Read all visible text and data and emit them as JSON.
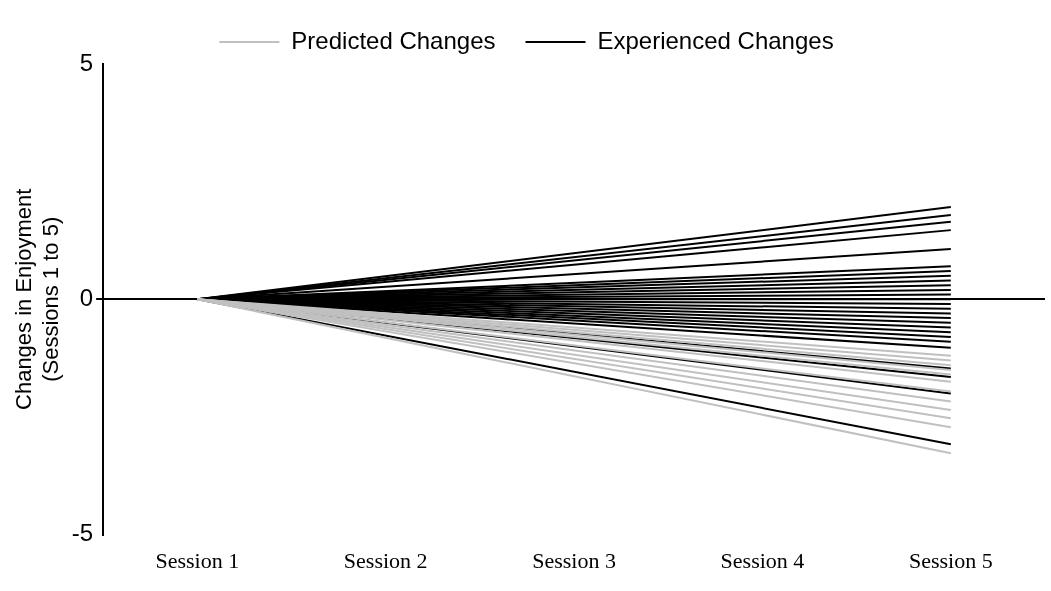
{
  "chart_data": {
    "type": "line",
    "ylabel": "Changes in Enjoyment\n(Sessions 1 to 5)",
    "categories": [
      "Session 1",
      "Session 2",
      "Session 3",
      "Session 4",
      "Session 5"
    ],
    "ylim": [
      -5,
      5
    ],
    "yticks": [
      -5,
      0,
      5
    ],
    "legend": "top",
    "grid": false,
    "marker": "none",
    "line_style": "solid",
    "series": [
      {
        "name": "Predicted Changes",
        "color": "#c0c0c0",
        "values": [
          0,
          null,
          null,
          null,
          -3.27
        ]
      },
      {
        "color": "#c0c0c0",
        "values": [
          0,
          null,
          null,
          null,
          -2.72
        ]
      },
      {
        "color": "#c0c0c0",
        "values": [
          0,
          null,
          null,
          null,
          -2.53
        ]
      },
      {
        "color": "#c0c0c0",
        "values": [
          0,
          null,
          null,
          null,
          -2.35
        ]
      },
      {
        "color": "#c0c0c0",
        "values": [
          0,
          null,
          null,
          null,
          -2.17
        ]
      },
      {
        "color": "#c0c0c0",
        "values": [
          0,
          null,
          null,
          null,
          -1.96
        ]
      },
      {
        "color": "#c0c0c0",
        "values": [
          0,
          null,
          null,
          null,
          -1.75
        ]
      },
      {
        "color": "#c0c0c0",
        "values": [
          0,
          null,
          null,
          null,
          -1.6
        ]
      },
      {
        "color": "#c0c0c0",
        "values": [
          0,
          null,
          null,
          null,
          -1.5
        ]
      },
      {
        "color": "#c0c0c0",
        "values": [
          0,
          null,
          null,
          null,
          -1.4
        ]
      },
      {
        "color": "#c0c0c0",
        "values": [
          0,
          null,
          null,
          null,
          -1.3
        ]
      },
      {
        "color": "#c0c0c0",
        "values": [
          0,
          null,
          null,
          null,
          -1.2
        ]
      },
      {
        "name": "Experienced Changes",
        "color": "#000000",
        "values": [
          0,
          null,
          null,
          null,
          1.96
        ]
      },
      {
        "color": "#000000",
        "values": [
          0,
          null,
          null,
          null,
          1.79
        ]
      },
      {
        "color": "#000000",
        "values": [
          0,
          null,
          null,
          null,
          1.65
        ]
      },
      {
        "color": "#000000",
        "values": [
          0,
          null,
          null,
          null,
          1.47
        ]
      },
      {
        "color": "#000000",
        "values": [
          0,
          null,
          null,
          null,
          1.07
        ]
      },
      {
        "color": "#000000",
        "values": [
          0,
          null,
          null,
          null,
          0.7
        ]
      },
      {
        "color": "#000000",
        "values": [
          0,
          null,
          null,
          null,
          0.6
        ]
      },
      {
        "color": "#000000",
        "values": [
          0,
          null,
          null,
          null,
          0.5
        ]
      },
      {
        "color": "#000000",
        "values": [
          0,
          null,
          null,
          null,
          0.4
        ]
      },
      {
        "color": "#000000",
        "values": [
          0,
          null,
          null,
          null,
          0.3
        ]
      },
      {
        "color": "#000000",
        "values": [
          0,
          null,
          null,
          null,
          0.2
        ]
      },
      {
        "color": "#000000",
        "values": [
          0,
          null,
          null,
          null,
          0.1
        ]
      },
      {
        "color": "#000000",
        "values": [
          0,
          null,
          null,
          null,
          0.0
        ]
      },
      {
        "color": "#000000",
        "values": [
          0,
          null,
          null,
          null,
          -0.1
        ]
      },
      {
        "color": "#000000",
        "values": [
          0,
          null,
          null,
          null,
          -0.2
        ]
      },
      {
        "color": "#000000",
        "values": [
          0,
          null,
          null,
          null,
          -0.3
        ]
      },
      {
        "color": "#000000",
        "values": [
          0,
          null,
          null,
          null,
          -0.4
        ]
      },
      {
        "color": "#000000",
        "values": [
          0,
          null,
          null,
          null,
          -0.5
        ]
      },
      {
        "color": "#000000",
        "values": [
          0,
          null,
          null,
          null,
          -0.6
        ]
      },
      {
        "color": "#000000",
        "values": [
          0,
          null,
          null,
          null,
          -0.7
        ]
      },
      {
        "color": "#000000",
        "values": [
          0,
          null,
          null,
          null,
          -0.8
        ]
      },
      {
        "color": "#000000",
        "values": [
          0,
          null,
          null,
          null,
          -0.9
        ]
      },
      {
        "color": "#000000",
        "values": [
          0,
          null,
          null,
          null,
          -1.03
        ]
      },
      {
        "color": "#000000",
        "values": [
          0,
          null,
          null,
          null,
          -1.47
        ]
      },
      {
        "color": "#000000",
        "values": [
          0,
          null,
          null,
          null,
          -1.65
        ]
      },
      {
        "color": "#000000",
        "values": [
          0,
          null,
          null,
          null,
          -2.0
        ]
      },
      {
        "color": "#000000",
        "values": [
          0,
          null,
          null,
          null,
          -3.08
        ]
      }
    ]
  }
}
